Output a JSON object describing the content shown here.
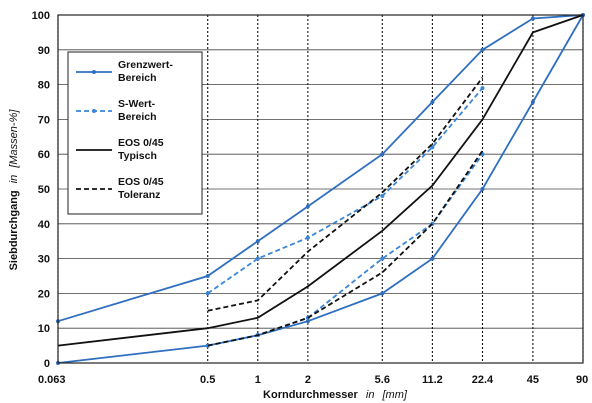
{
  "chart_data": {
    "type": "line",
    "title": "",
    "x_scale": "log",
    "xlabel": {
      "main": "Korndurchmesser",
      "in": "in",
      "unit": "[mm]"
    },
    "ylabel": {
      "main": "Siebdurchgang",
      "in": "in",
      "unit": "[Massen-%]"
    },
    "xticks": [
      {
        "value": 0.063,
        "label": "0.063"
      },
      {
        "value": 0.5,
        "label": "0.5"
      },
      {
        "value": 1,
        "label": "1"
      },
      {
        "value": 2,
        "label": "2"
      },
      {
        "value": 5.6,
        "label": "5.6"
      },
      {
        "value": 11.2,
        "label": "11.2"
      },
      {
        "value": 22.4,
        "label": "22.4"
      },
      {
        "value": 45,
        "label": "45"
      },
      {
        "value": 90,
        "label": "90"
      }
    ],
    "ylim": [
      0,
      100
    ],
    "yticks": [
      0,
      10,
      20,
      30,
      40,
      50,
      60,
      70,
      80,
      90,
      100
    ],
    "grid": {
      "horizontal": true,
      "vertical": "dotted"
    },
    "legend_position": "top-left",
    "series": [
      {
        "name": "Grenzwert-\nBereich",
        "color": "#2f6fc0",
        "dash": "solid",
        "markers": true,
        "lines": [
          {
            "x": [
              0.063,
              0.5,
              1,
              2,
              5.6,
              11.2,
              22.4,
              45,
              90
            ],
            "y": [
              12,
              25,
              35,
              45,
              60,
              75,
              90,
              99,
              100
            ]
          },
          {
            "x": [
              0.063,
              0.5,
              1,
              2,
              5.6,
              11.2,
              22.4,
              45,
              90
            ],
            "y": [
              0,
              5,
              8,
              12,
              20,
              30,
              50,
              75,
              100
            ]
          }
        ]
      },
      {
        "name": "S-Wert-\nBereich",
        "color": "#3a86d8",
        "dash": "dashed",
        "markers": true,
        "lines": [
          {
            "x": [
              0.5,
              1,
              2,
              5.6,
              11.2,
              22.4
            ],
            "y": [
              20,
              30,
              36,
              48,
              62,
              79
            ]
          },
          {
            "x": [
              0.5,
              1,
              2,
              5.6,
              11.2,
              22.4
            ],
            "y": [
              5,
              8,
              13,
              30,
              40,
              60
            ]
          }
        ]
      },
      {
        "name": "EOS 0/45\nTypisch",
        "color": "#111111",
        "dash": "solid",
        "markers": false,
        "lines": [
          {
            "x": [
              0.063,
              0.5,
              1,
              2,
              5.6,
              11.2,
              22.4,
              45,
              90
            ],
            "y": [
              5,
              10,
              13,
              22,
              38,
              51,
              70,
              95,
              100
            ]
          }
        ]
      },
      {
        "name": "EOS 0/45\nToleranz",
        "color": "#111111",
        "dash": "dashed",
        "markers": false,
        "lines": [
          {
            "x": [
              0.5,
              1,
              2,
              5.6,
              11.2,
              22.4
            ],
            "y": [
              15,
              18,
              32,
              49,
              63,
              82
            ]
          },
          {
            "x": [
              0.5,
              1,
              2,
              5.6,
              11.2,
              22.4
            ],
            "y": [
              5,
              8,
              13,
              26,
              40,
              61
            ]
          }
        ]
      }
    ]
  }
}
